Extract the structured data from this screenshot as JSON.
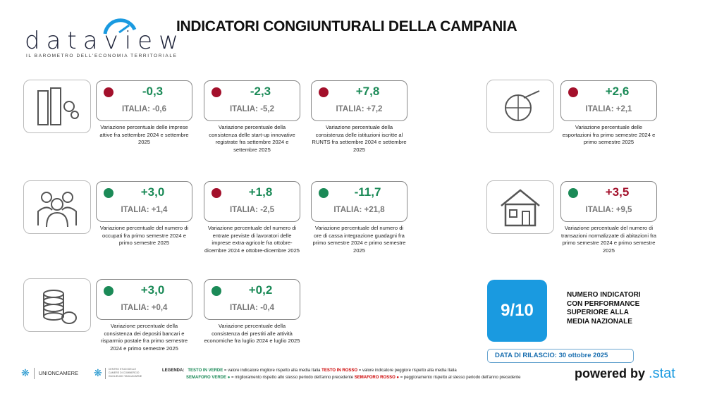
{
  "header": {
    "logo_text": "dataview",
    "logo_subtitle": "IL BAROMETRO DELL'ECONOMIA TERRITORIALE",
    "title": "INDICATORI CONGIUNTURALI DELLA CAMPANIA"
  },
  "colors": {
    "green": "#1b8a57",
    "red": "#a3102b",
    "accent": "#1a9ae0"
  },
  "icons": [
    {
      "name": "buildings-gears-icon"
    },
    {
      "name": "people-icon"
    },
    {
      "name": "coins-icon"
    },
    {
      "name": "globe-plane-icon"
    },
    {
      "name": "house-icon"
    }
  ],
  "cards": [
    {
      "value": "-0,3",
      "value_color": "green",
      "dot": "red",
      "italia": "ITALIA: -0,6",
      "desc": "Variazione percentuale delle imprese attive fra settembre 2024 e settembre 2025"
    },
    {
      "value": "-2,3",
      "value_color": "green",
      "dot": "red",
      "italia": "ITALIA: -5,2",
      "desc": "Variazione percentuale della consistenza delle start-up innovative registrate fra settembre 2024 e settembre 2025"
    },
    {
      "value": "+7,8",
      "value_color": "green",
      "dot": "red",
      "italia": "ITALIA: +7,2",
      "desc": "Variazione percentuale della consistenza delle istituzioni iscritte al RUNTS fra settembre 2024 e settembre 2025"
    },
    {
      "value": "+2,6",
      "value_color": "green",
      "dot": "red",
      "italia": "ITALIA: +2,1",
      "desc": "Variazione percentuale delle esportazioni fra primo semestre 2024 e primo semestre 2025"
    },
    {
      "value": "+3,0",
      "value_color": "green",
      "dot": "green",
      "italia": "ITALIA: +1,4",
      "desc": "Variazione percentuale del numero di occupati fra primo semestre 2024 e primo semestre 2025"
    },
    {
      "value": "+1,8",
      "value_color": "green",
      "dot": "red",
      "italia": "ITALIA: -2,5",
      "desc": "Variazione percentuale del numero di entrate previste di lavoratori delle imprese extra-agricole fra ottobre-dicembre 2024 e ottobre-dicembre 2025"
    },
    {
      "value": "-11,7",
      "value_color": "green",
      "dot": "green",
      "italia": "ITALIA: +21,8",
      "desc": "Variazione percentuale del numero di ore di cassa integrazione guadagni fra primo semestre 2024 e primo semestre 2025"
    },
    {
      "value": "+3,5",
      "value_color": "red",
      "dot": "green",
      "italia": "ITALIA: +9,5",
      "desc": "Variazione percentuale del numero di transazioni normalizzate di abitazioni fra primo semestre 2024 e primo semestre 2025"
    },
    {
      "value": "+3,0",
      "value_color": "green",
      "dot": "green",
      "italia": "ITALIA: +0,4",
      "desc": "Variazione percentuale della consistenza dei depositi bancari e risparmio postale fra primo semestre 2024 e primo semestre 2025"
    },
    {
      "value": "+0,2",
      "value_color": "green",
      "dot": "green",
      "italia": "ITALIA: -0,4",
      "desc": "Variazione percentuale della consistenza dei prestiti alle attività economiche fra luglio 2024 e luglio 2025"
    }
  ],
  "summary": {
    "score": "9/10",
    "label": "NUMERO INDICATORI CON PERFORMANCE SUPERIORE ALLA MEDIA NAZIONALE",
    "release": "DATA DI RILASCIO: 30 ottobre 2025"
  },
  "footer": {
    "unioncamere": "UNIONCAMERE",
    "tagliacarne": "CENTRO STUDI DELLE CAMERE DI COMMERCIO GUGLIELMO TAGLIACARNE",
    "legend_label": "LEGENDA:",
    "green_text": "TESTO IN VERDE",
    "green_text_desc": " = valore indicatore migliore rispetto alla media Italia ",
    "red_text": "TESTO IN ROSSO",
    "red_text_desc": " = valore indicatore peggiore rispetto alla media Italia",
    "green_light": "SEMAFORO VERDE",
    "green_light_desc": " = miglioramento rispetto allo stesso periodo dell'anno precedente ",
    "red_light": "SEMAFORO ROSSO",
    "red_light_desc": " = peggioramento rispetto al stesso periodo dell'anno precedente",
    "powered": "powered by",
    "brand": ".stat"
  }
}
